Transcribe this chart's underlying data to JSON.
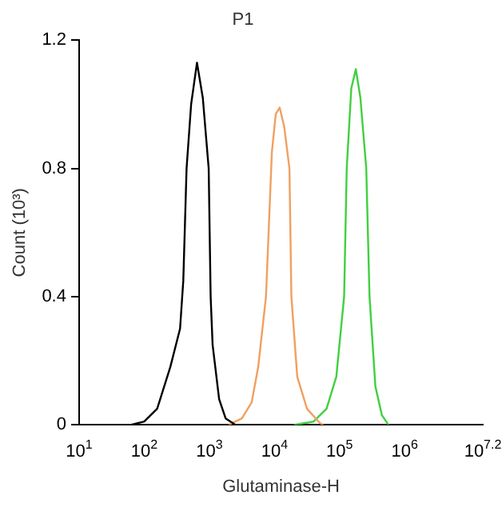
{
  "chart_data": {
    "type": "line",
    "title": "P1",
    "xlabel": "Glutaminase-H",
    "ylabel": "Count (10³)",
    "log": "x",
    "xlim": [
      10,
      15848932
    ],
    "xticks": [
      {
        "value": 10,
        "label": "10$^{1}$"
      },
      {
        "value": 100,
        "label": "10$^{2}$"
      },
      {
        "value": 1000,
        "label": "10$^{3}$"
      },
      {
        "value": 10000,
        "label": "10$^{4}$"
      },
      {
        "value": 100000,
        "label": "10$^{5}$"
      },
      {
        "value": 1000000,
        "label": "10$^{6}$"
      },
      {
        "value": 15848932,
        "label": "10$^{7.2}$"
      }
    ],
    "ylim": [
      0,
      1.2
    ],
    "yticks": [
      0,
      0.4,
      0.8,
      1.2
    ],
    "grid": false,
    "legend": false,
    "marker": "none",
    "line_style": "solid",
    "series": [
      {
        "color": "#000000",
        "x": [
          63,
          100,
          158,
          251,
          355,
          398,
          447,
          525,
          646,
          794,
          977,
          1047,
          1122,
          1413,
          1778,
          2512
        ],
        "values": [
          0,
          0.01,
          0.05,
          0.18,
          0.3,
          0.45,
          0.8,
          1.0,
          1.13,
          1.02,
          0.8,
          0.4,
          0.25,
          0.08,
          0.02,
          0
        ]
      },
      {
        "color": "#f0a060",
        "x": [
          1995,
          3162,
          4467,
          5623,
          7413,
          9120,
          10471,
          12023,
          14125,
          16982,
          18197,
          22387,
          31623,
          50119,
          56234
        ],
        "values": [
          0,
          0.02,
          0.07,
          0.18,
          0.4,
          0.85,
          0.97,
          0.99,
          0.93,
          0.8,
          0.4,
          0.15,
          0.05,
          0.005,
          0
        ]
      },
      {
        "color": "#40d040",
        "x": [
          19953,
          39811,
          63096,
          89125,
          117490,
          128825,
          151356,
          177828,
          208930,
          257040,
          288403,
          354813,
          446684,
          562341
        ],
        "values": [
          0,
          0.01,
          0.05,
          0.15,
          0.4,
          0.8,
          1.05,
          1.11,
          1.02,
          0.8,
          0.4,
          0.12,
          0.03,
          0
        ]
      }
    ]
  }
}
